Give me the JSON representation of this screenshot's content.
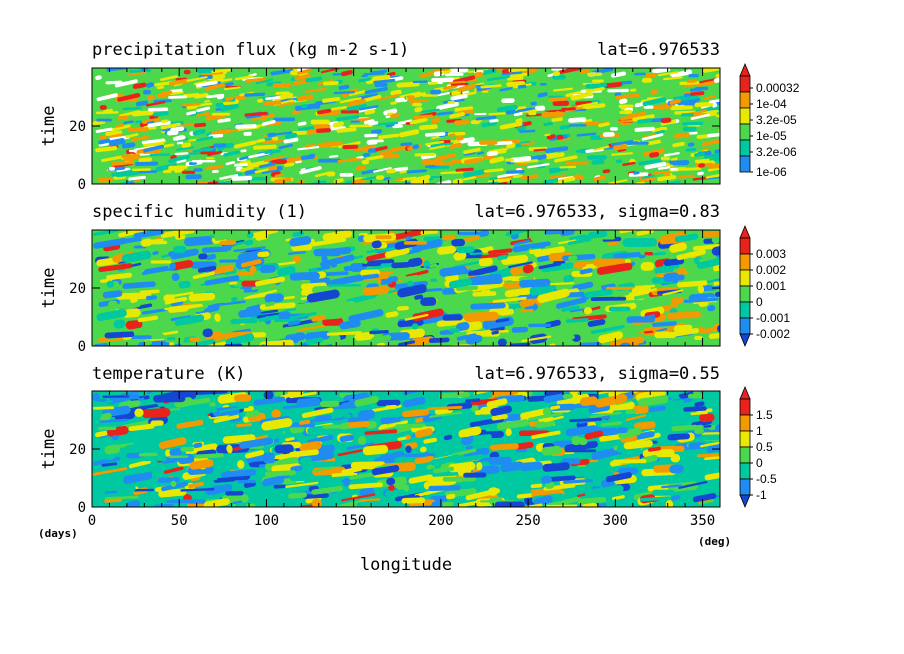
{
  "chart_data": [
    {
      "type": "heatmap",
      "title": "precipitation flux (kg m-2 s-1)",
      "subtitle": "lat=6.976533",
      "ylabel": "time",
      "xlim": [
        0,
        360
      ],
      "ylim": [
        0,
        40
      ],
      "y_ticks": [
        "0",
        "20"
      ],
      "colorbar": {
        "labels": [
          "0.00032",
          "1e-04",
          "3.2e-05",
          "1e-05",
          "3.2e-06",
          "1e-06"
        ],
        "colors": [
          "#e8231c",
          "#f39a00",
          "#e8e800",
          "#4cd84c",
          "#00c8a0",
          "#1e8cf0"
        ],
        "extend": "top"
      }
    },
    {
      "type": "heatmap",
      "title": "specific humidity (1)",
      "subtitle": "lat=6.976533, sigma=0.83",
      "ylabel": "time",
      "xlim": [
        0,
        360
      ],
      "ylim": [
        0,
        40
      ],
      "y_ticks": [
        "0",
        "20"
      ],
      "colorbar": {
        "labels": [
          "0.003",
          "0.002",
          "0.001",
          "0",
          "-0.001",
          "-0.002"
        ],
        "colors": [
          "#e8231c",
          "#f39a00",
          "#e8e800",
          "#4cd84c",
          "#00c8a0",
          "#1e8cf0",
          "#1446d2"
        ],
        "extend": "both"
      }
    },
    {
      "type": "heatmap",
      "title": "temperature (K)",
      "subtitle": "lat=6.976533, sigma=0.55",
      "ylabel": "time",
      "xlabel": "longitude",
      "xlim": [
        0,
        360
      ],
      "ylim": [
        0,
        40
      ],
      "y_ticks": [
        "0",
        "20"
      ],
      "x_ticks": [
        "0",
        "50",
        "100",
        "150",
        "200",
        "250",
        "300",
        "350"
      ],
      "x_unit": "(deg)",
      "y_unit": "(days)",
      "colorbar": {
        "labels": [
          "1.5",
          "1",
          "0.5",
          "0",
          "-0.5",
          "-1"
        ],
        "colors": [
          "#e8231c",
          "#f39a00",
          "#e8e800",
          "#4cd84c",
          "#00c8a0",
          "#1e8cf0",
          "#1446d2"
        ],
        "extend": "both"
      }
    }
  ]
}
